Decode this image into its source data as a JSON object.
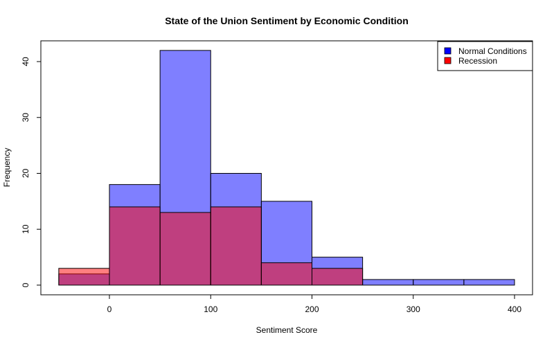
{
  "chart_data": {
    "type": "bar",
    "title": "State of the Union Sentiment by Economic Condition",
    "xlabel": "Sentiment Score",
    "ylabel": "Frequency",
    "xlim": [
      -50,
      400
    ],
    "ylim": [
      0,
      42
    ],
    "x_ticks": [
      0,
      100,
      200,
      300,
      400
    ],
    "y_ticks": [
      0,
      10,
      20,
      30,
      40
    ],
    "bin_edges": [
      -50,
      0,
      50,
      100,
      150,
      200,
      250,
      300,
      350,
      400
    ],
    "series": [
      {
        "name": "Normal Conditions",
        "color": "#0000ff",
        "fill": "rgba(0,0,255,0.5)",
        "values": [
          2,
          18,
          42,
          20,
          15,
          5,
          1,
          1,
          1
        ]
      },
      {
        "name": "Recession",
        "color": "#ff0000",
        "fill": "rgba(255,0,0,0.5)",
        "values": [
          3,
          14,
          13,
          14,
          4,
          3,
          0,
          0,
          0
        ]
      }
    ],
    "legend": {
      "position": "top-right",
      "entries": [
        "Normal Conditions",
        "Recession"
      ],
      "swatch_colors": [
        "#0000ff",
        "#ff0000"
      ]
    },
    "grid": false
  }
}
